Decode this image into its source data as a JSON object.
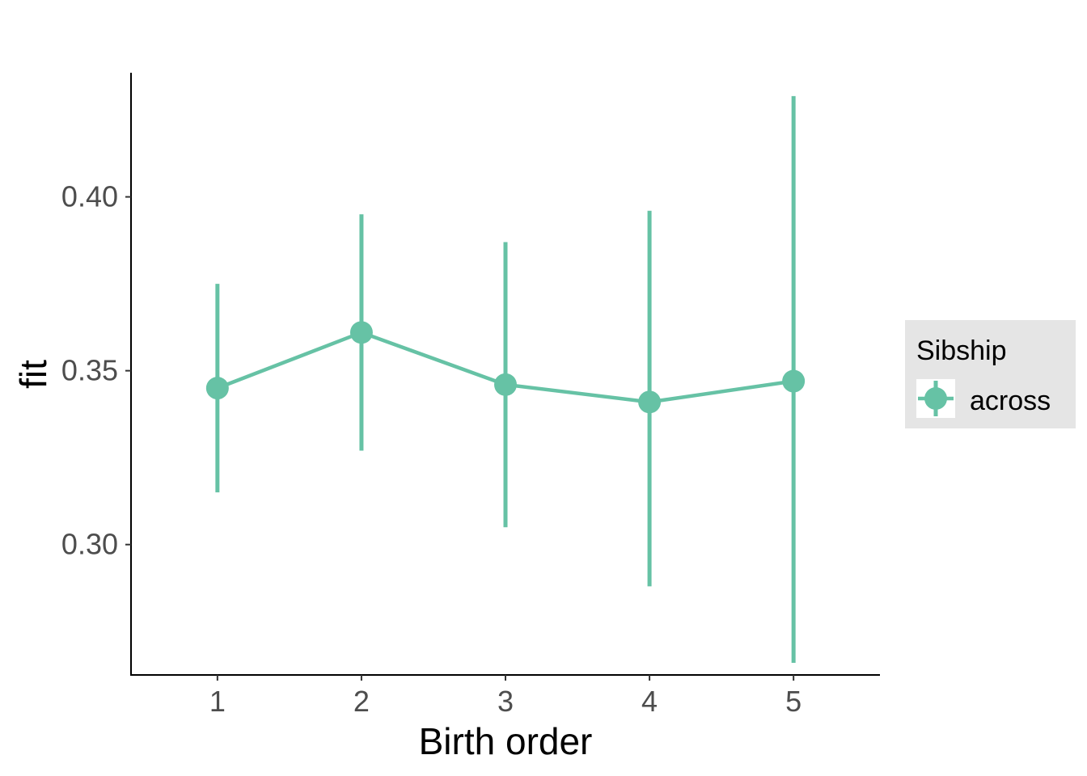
{
  "colors": {
    "series": "#66c2a5",
    "axis": "#000000",
    "tick_text": "#4d4d4d",
    "legend_bg": "#e5e5e5"
  },
  "chart_data": {
    "type": "line",
    "title": "",
    "xlabel": "Birth order",
    "ylabel": "fit",
    "categories": [
      "1",
      "2",
      "3",
      "4",
      "5"
    ],
    "x": [
      1,
      2,
      3,
      4,
      5
    ],
    "xlim": [
      0.4,
      5.6
    ],
    "ylim": [
      0.2625,
      0.4357
    ],
    "yticks": [
      0.3,
      0.35,
      0.4
    ],
    "ytick_labels": [
      "0.30",
      "0.35",
      "0.40"
    ],
    "grid": false,
    "legend": {
      "title": "Sibship",
      "position": "right"
    },
    "series": [
      {
        "name": "across",
        "values": [
          0.345,
          0.361,
          0.346,
          0.341,
          0.347
        ],
        "lower": [
          0.315,
          0.327,
          0.305,
          0.288,
          0.266
        ],
        "upper": [
          0.375,
          0.395,
          0.387,
          0.396,
          0.429
        ]
      }
    ]
  }
}
